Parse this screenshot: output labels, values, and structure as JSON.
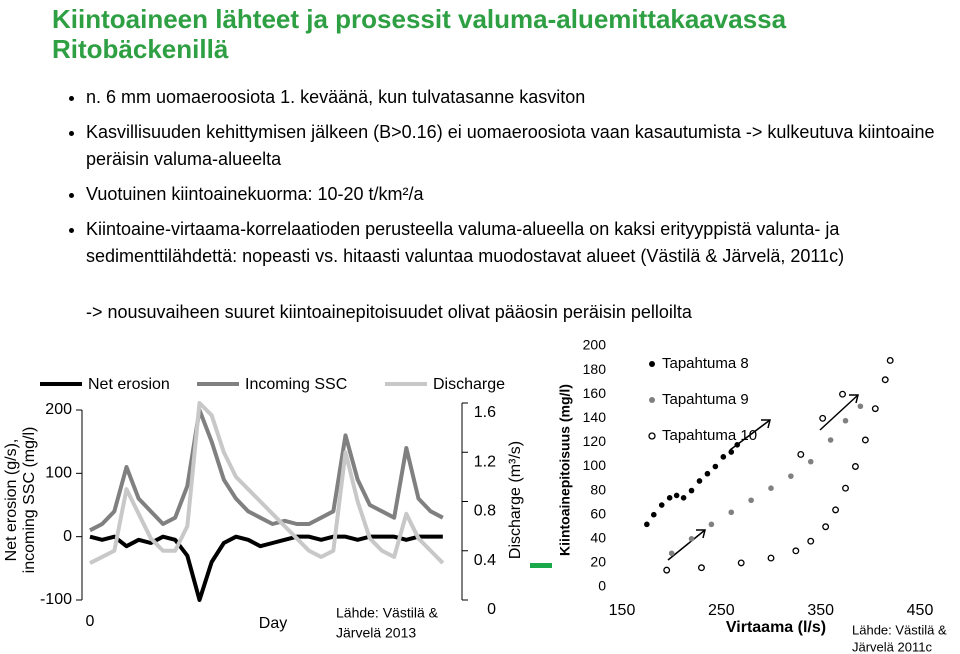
{
  "title": "Kiintoaineen lähteet ja prosessit valuma-aluemittakaavassa Ritobäckenillä",
  "bullets": [
    "n. 6 mm uomaeroosiota 1. keväänä, kun tulvatasanne kasviton",
    "Kasvillisuuden kehittymisen jälkeen (B>0.16) ei uomaeroosiota vaan kasautumista -> kulkeutuva kiintoaine peräisin valuma-alueelta",
    "Vuotuinen kiintoainekuorma: 10-20 t/km²/a",
    "Kiintoaine-virtaama-korrelaatioden perusteella valuma-alueella on kaksi erityyppistä valunta- ja sedimenttilähdettä: nopeasti vs. hitaasti valuntaa muodostavat alueet (Västilä & Järvelä, 2011c)"
  ],
  "note": "-> nousuvaiheen suuret kiintoainepitoisuudet olivat pääosin peräisin pelloilta",
  "chart_data": [
    {
      "type": "line",
      "x_label": "Day",
      "y_label": [
        "Net erosion (g/s),",
        "incoming SSC (mg/l)"
      ],
      "y2_label": "Discharge (m³/s)",
      "source": [
        "Lähde: Västilä &",
        "Järvelä 2013"
      ],
      "x": [
        0,
        4,
        8,
        12,
        16,
        20,
        24,
        28,
        32,
        36,
        40,
        44,
        48,
        52,
        56,
        60,
        64,
        68,
        72,
        76,
        80,
        84,
        88,
        92,
        96,
        100,
        104,
        108,
        112,
        116
      ],
      "xlim": [
        0,
        120
      ],
      "xticks": [
        0
      ],
      "ylim": [
        -100,
        200
      ],
      "yticks": [
        -100,
        0,
        100,
        200
      ],
      "y2lim": [
        0,
        1.6
      ],
      "y2ticks": [
        0,
        0.4,
        0.8,
        1.2,
        1.6
      ],
      "series": [
        {
          "name": "Net erosion",
          "color": "#000000",
          "values": [
            0,
            -5,
            0,
            -15,
            -5,
            -10,
            0,
            -5,
            -30,
            -100,
            -40,
            -10,
            0,
            -5,
            -15,
            -10,
            -5,
            0,
            0,
            -5,
            0,
            0,
            -5,
            0,
            0,
            0,
            -5,
            0,
            0,
            0
          ]
        },
        {
          "name": "Incoming SSC",
          "color": "#808080",
          "values": [
            10,
            20,
            40,
            110,
            60,
            40,
            20,
            30,
            80,
            200,
            150,
            90,
            60,
            40,
            30,
            20,
            25,
            20,
            20,
            30,
            40,
            160,
            90,
            50,
            40,
            30,
            140,
            60,
            40,
            30
          ]
        },
        {
          "name": "Discharge",
          "color": "#c8c8c8",
          "axis": "y2",
          "values": [
            0.3,
            0.35,
            0.4,
            0.9,
            0.7,
            0.5,
            0.4,
            0.4,
            0.6,
            1.6,
            1.5,
            1.2,
            1.0,
            0.9,
            0.8,
            0.7,
            0.6,
            0.5,
            0.4,
            0.35,
            0.4,
            1.2,
            0.8,
            0.5,
            0.4,
            0.35,
            0.7,
            0.5,
            0.4,
            0.3
          ]
        }
      ]
    },
    {
      "type": "scatter",
      "x_label": "Virtaama (l/s)",
      "y_label": "Kiintoainepitoisuus (mg/l)",
      "source": [
        "Lähde: Västilä &",
        "Järvelä 2011c"
      ],
      "xlim": [
        150,
        450
      ],
      "xticks": [
        150,
        250,
        350,
        450
      ],
      "ylim": [
        0,
        200
      ],
      "yticks": [
        0,
        20,
        40,
        60,
        80,
        100,
        120,
        140,
        160,
        180,
        200
      ],
      "series": [
        {
          "name": "Tapahtuma 8",
          "color": "#000000",
          "marker": "filled",
          "x": [
            175,
            182,
            190,
            198,
            205,
            212,
            220,
            228,
            236,
            244,
            252,
            260,
            266
          ],
          "values": [
            52,
            60,
            68,
            74,
            76,
            74,
            80,
            88,
            94,
            100,
            108,
            112,
            118
          ]
        },
        {
          "name": "Tapahtuma 9",
          "color": "#808080",
          "marker": "filled",
          "x": [
            200,
            220,
            240,
            260,
            280,
            300,
            320,
            340,
            360,
            375,
            390
          ],
          "values": [
            28,
            40,
            52,
            62,
            72,
            82,
            92,
            104,
            122,
            138,
            150
          ]
        },
        {
          "name": "Tapahtuma 10",
          "color": "#000000",
          "marker": "open",
          "x": [
            195,
            230,
            270,
            300,
            325,
            340,
            355,
            365,
            375,
            385,
            395,
            405,
            415,
            420,
            330,
            352,
            372
          ],
          "values": [
            14,
            16,
            20,
            24,
            30,
            38,
            50,
            64,
            82,
            100,
            122,
            148,
            172,
            188,
            110,
            140,
            160
          ]
        }
      ]
    }
  ]
}
